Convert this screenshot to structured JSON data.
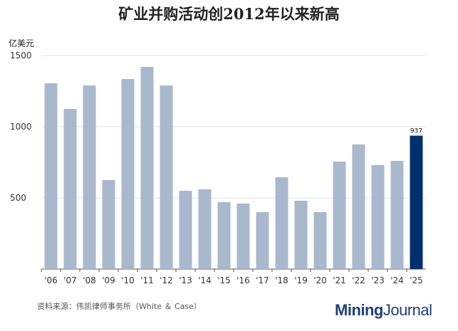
{
  "chart_data": {
    "type": "bar",
    "title": "矿业并购活动创2012年以来新高",
    "ylabel": "亿美元",
    "ylim": [
      0,
      1500
    ],
    "yticks": [
      500,
      1000,
      1500
    ],
    "grid": true,
    "categories": [
      "'06",
      "'07",
      "'08",
      "'09",
      "'10",
      "'11",
      "'12",
      "'13",
      "'14",
      "'15",
      "'16",
      "'17",
      "'18",
      "'19",
      "'20",
      "'21",
      "'22",
      "'23",
      "'24",
      "'25"
    ],
    "values": [
      1305,
      1125,
      1290,
      625,
      1335,
      1420,
      1290,
      550,
      560,
      470,
      460,
      400,
      645,
      480,
      400,
      755,
      875,
      730,
      760,
      937
    ],
    "highlight_index": 19,
    "data_labels": [
      {
        "index": 19,
        "text": "937"
      }
    ],
    "colors": {
      "bar": "#a9b8cd",
      "highlight": "#002f6c",
      "grid": "#e3e3e3"
    }
  },
  "source": "资料来源：伟凯律师事务所（White ＆ Case）",
  "logo": {
    "part1": "Mining",
    "part2": "Journal"
  }
}
